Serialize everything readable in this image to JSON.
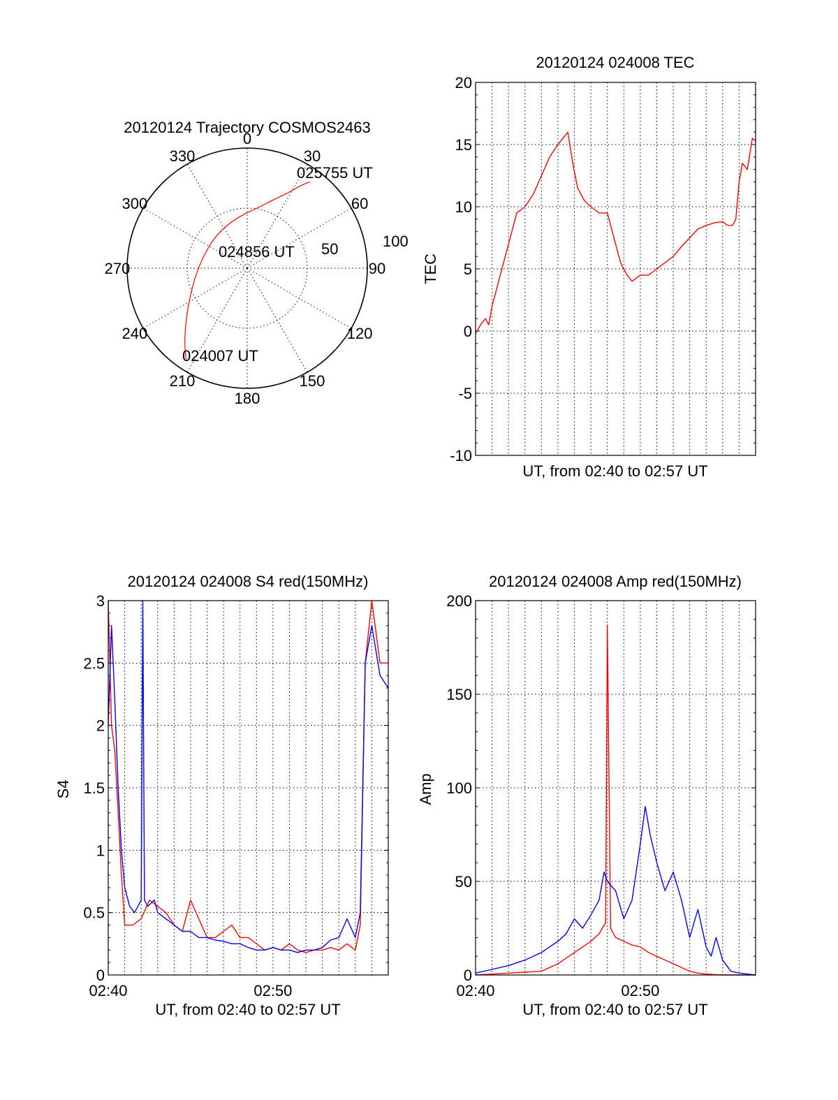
{
  "colors": {
    "red": "#ff0000",
    "blue": "#0000ff"
  },
  "chart_data": [
    {
      "type": "polar",
      "title": "20120124 Trajectory COSMOS2463",
      "angle_ticks": [
        "0",
        "30",
        "60",
        "90",
        "120",
        "150",
        "180",
        "210",
        "240",
        "270",
        "300",
        "330"
      ],
      "radius_ticks": [
        "50",
        "100"
      ],
      "trajectory": {
        "color": "red",
        "points": [
          {
            "az": 214,
            "el": 8
          },
          {
            "az": 220,
            "el": 17
          },
          {
            "az": 228,
            "el": 28
          },
          {
            "az": 238,
            "el": 38
          },
          {
            "az": 250,
            "el": 46
          },
          {
            "az": 265,
            "el": 52
          },
          {
            "az": 285,
            "el": 56
          },
          {
            "az": 315,
            "el": 56
          },
          {
            "az": 345,
            "el": 52
          },
          {
            "az": 10,
            "el": 44
          },
          {
            "az": 22,
            "el": 34
          },
          {
            "az": 29,
            "el": 25
          },
          {
            "az": 33,
            "el": 16
          },
          {
            "az": 36,
            "el": 10
          }
        ]
      },
      "annotations": [
        "025755 UT",
        "024856 UT",
        "024007 UT"
      ]
    },
    {
      "type": "line",
      "title": "20120124 024008 TEC",
      "xlabel": "UT, from 02:40 to 02:57 UT",
      "ylabel": "TEC",
      "ylim": [
        -10,
        20
      ],
      "yticks": [
        "20",
        "15",
        "10",
        "5",
        "0",
        "-5",
        "-10"
      ],
      "xlim": [
        0,
        17
      ],
      "series": [
        {
          "color": "red",
          "x": [
            0,
            0.3,
            0.6,
            0.8,
            1.0,
            1.3,
            1.6,
            2.0,
            2.5,
            3.0,
            3.5,
            4.0,
            4.5,
            5.0,
            5.3,
            5.6,
            5.9,
            6.2,
            6.6,
            7.0,
            7.5,
            8.0,
            8.5,
            8.8,
            9.2,
            9.5,
            10.0,
            10.5,
            11.0,
            11.5,
            12.0,
            12.5,
            13.0,
            13.5,
            14.0,
            14.5,
            15.0,
            15.3,
            15.6,
            15.8,
            16.0,
            16.2,
            16.5,
            16.8,
            17.0
          ],
          "y": [
            -0.2,
            0.5,
            1.0,
            0.5,
            2.0,
            3.5,
            5.0,
            7.0,
            9.5,
            10.0,
            11.0,
            12.5,
            14.0,
            15.0,
            15.5,
            16.0,
            13.5,
            11.5,
            10.5,
            10.0,
            9.5,
            9.5,
            7.0,
            5.5,
            4.5,
            4.0,
            4.5,
            4.5,
            5.0,
            5.5,
            6.0,
            6.8,
            7.5,
            8.2,
            8.5,
            8.7,
            8.8,
            8.5,
            8.5,
            9.0,
            12.0,
            13.5,
            13.0,
            15.5,
            15.3
          ]
        }
      ]
    },
    {
      "type": "line",
      "title": "20120124 024008 S4 red(150MHz)",
      "xlabel": "UT, from 02:40 to 02:57 UT",
      "ylabel": "S4",
      "ylim": [
        0,
        3
      ],
      "yticks": [
        "3",
        "2.5",
        "2",
        "1.5",
        "1",
        "0.5",
        "0"
      ],
      "xlim": [
        0,
        17
      ],
      "xticks": [
        "02:40",
        "02:50"
      ],
      "xtick_values": [
        0,
        10
      ],
      "series": [
        {
          "color": "red",
          "x": [
            0,
            0.2,
            0.4,
            0.6,
            0.8,
            1.0,
            1.5,
            2.0,
            2.5,
            3.0,
            3.5,
            4.0,
            4.5,
            5.0,
            5.5,
            6.0,
            6.5,
            7.0,
            7.5,
            8.0,
            8.5,
            9.0,
            9.5,
            10.0,
            10.5,
            11.0,
            11.5,
            12.0,
            12.5,
            13.0,
            13.5,
            14.0,
            14.5,
            15.0,
            15.3,
            15.6,
            16.0,
            16.5,
            17.0
          ],
          "y": [
            3.0,
            2.0,
            1.8,
            1.3,
            0.8,
            0.4,
            0.4,
            0.45,
            0.6,
            0.55,
            0.5,
            0.4,
            0.35,
            0.6,
            0.45,
            0.3,
            0.3,
            0.35,
            0.4,
            0.3,
            0.3,
            0.25,
            0.2,
            0.22,
            0.2,
            0.25,
            0.2,
            0.18,
            0.2,
            0.2,
            0.22,
            0.2,
            0.25,
            0.2,
            0.4,
            2.5,
            3.0,
            2.5,
            2.5
          ]
        },
        {
          "color": "blue",
          "x": [
            0,
            0.2,
            0.4,
            0.6,
            0.8,
            1.0,
            1.3,
            1.6,
            2.0,
            2.1,
            2.2,
            2.4,
            2.8,
            3.0,
            3.5,
            4.0,
            4.5,
            5.0,
            5.5,
            6.0,
            6.5,
            7.0,
            7.5,
            8.0,
            8.5,
            9.0,
            9.5,
            10.0,
            10.5,
            11.0,
            11.5,
            12.0,
            12.5,
            13.0,
            13.5,
            14.0,
            14.5,
            15.0,
            15.3,
            15.6,
            16.0,
            16.5,
            17.0
          ],
          "y": [
            2.0,
            2.8,
            2.2,
            1.5,
            1.0,
            0.7,
            0.55,
            0.5,
            0.6,
            3.0,
            0.6,
            0.55,
            0.6,
            0.5,
            0.45,
            0.4,
            0.35,
            0.35,
            0.3,
            0.3,
            0.28,
            0.27,
            0.25,
            0.25,
            0.22,
            0.2,
            0.2,
            0.22,
            0.2,
            0.2,
            0.18,
            0.2,
            0.2,
            0.22,
            0.28,
            0.3,
            0.45,
            0.3,
            0.5,
            2.5,
            2.8,
            2.4,
            2.3
          ]
        }
      ]
    },
    {
      "type": "line",
      "title": "20120124 024008 Amp red(150MHz)",
      "xlabel": "UT, from 02:40 to 02:57 UT",
      "ylabel": "Amp",
      "ylim": [
        0,
        200
      ],
      "yticks": [
        "200",
        "150",
        "100",
        "50",
        "0"
      ],
      "xlim": [
        0,
        17
      ],
      "xticks": [
        "02:40",
        "02:50"
      ],
      "xtick_values": [
        0,
        10
      ],
      "series": [
        {
          "color": "red",
          "x": [
            0,
            1,
            2,
            3,
            4,
            4.5,
            5,
            5.5,
            6,
            6.5,
            7,
            7.5,
            7.9,
            8.0,
            8.2,
            8.5,
            9,
            9.5,
            10,
            10.5,
            11,
            11.5,
            12,
            12.5,
            13,
            13.5,
            14,
            15,
            16,
            17
          ],
          "y": [
            0,
            0.5,
            1,
            1.5,
            2,
            4,
            6,
            9,
            12,
            15,
            18,
            22,
            28,
            187,
            25,
            20,
            18,
            16,
            15,
            12,
            10,
            8,
            6,
            4,
            2,
            1,
            0.5,
            0,
            0,
            0
          ]
        },
        {
          "color": "blue",
          "x": [
            0,
            1,
            2,
            3,
            4,
            4.5,
            5,
            5.5,
            6,
            6.5,
            7,
            7.5,
            7.8,
            8.0,
            8.5,
            9,
            9.5,
            10,
            10.3,
            10.6,
            11,
            11.5,
            12,
            12.5,
            13,
            13.5,
            14,
            14.3,
            14.6,
            15,
            15.5,
            16,
            17
          ],
          "y": [
            1,
            3,
            5,
            8,
            12,
            15,
            18,
            22,
            30,
            25,
            32,
            40,
            55,
            50,
            45,
            30,
            40,
            70,
            90,
            75,
            60,
            45,
            55,
            40,
            20,
            35,
            15,
            10,
            20,
            8,
            2,
            1,
            0
          ]
        }
      ]
    }
  ]
}
